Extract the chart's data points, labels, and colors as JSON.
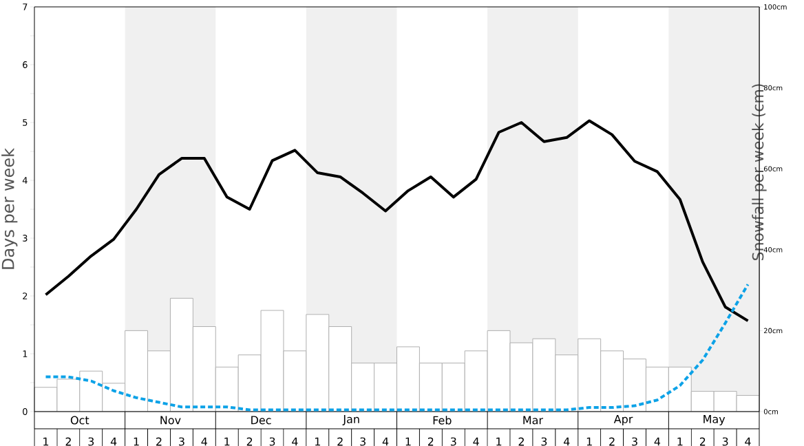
{
  "chart_data": {
    "type": "bar",
    "categories": [
      "1",
      "2",
      "3",
      "4",
      "1",
      "2",
      "3",
      "4",
      "1",
      "2",
      "3",
      "4",
      "1",
      "2",
      "3",
      "4",
      "1",
      "2",
      "3",
      "4",
      "1",
      "2",
      "3",
      "4",
      "1",
      "2",
      "3",
      "4",
      "1",
      "2",
      "3",
      "4"
    ],
    "annotations": [
      "Oct",
      "Nov",
      "Dec",
      "Jan",
      "Feb",
      "Mar",
      "Apr",
      "May"
    ],
    "ylabel": "Days per week",
    "y2label": "Snowfall per week (cm)",
    "ylim": [
      0,
      7
    ],
    "yticks": [
      0,
      {
        "value": 0.5,
        "label": null
      },
      1,
      {
        "value": 1.5,
        "label": null
      },
      2,
      {
        "value": 2.5,
        "label": null
      },
      3,
      {
        "value": 3.5,
        "label": null
      },
      4,
      {
        "value": 4.5,
        "label": null
      },
      5,
      {
        "value": 5.5,
        "label": null
      },
      6,
      {
        "value": 6.5,
        "label": null
      },
      7
    ],
    "y2lim": [
      0,
      100
    ],
    "y2ticks": [
      {
        "value": 0,
        "label": "0cm"
      },
      {
        "value": 20,
        "label": "20cm"
      },
      {
        "value": 40,
        "label": "40cm"
      },
      {
        "value": 60,
        "label": "60cm"
      },
      {
        "value": 80,
        "label": "80cm"
      },
      {
        "value": 100,
        "label": "100cm"
      }
    ],
    "series": [
      {
        "axis": "y2",
        "color": "#ffffff",
        "values": [
          6,
          8,
          10,
          7,
          20,
          15,
          28,
          21,
          11,
          14,
          25,
          15,
          24,
          21,
          12,
          12,
          16,
          12,
          12,
          15,
          20,
          17,
          18,
          14,
          18,
          15,
          13,
          11,
          11,
          5,
          5,
          4
        ]
      },
      {
        "type": "line",
        "color": "#000000",
        "values": [
          2.02,
          2.34,
          2.69,
          2.98,
          3.5,
          4.1,
          4.38,
          4.38,
          3.71,
          3.5,
          4.34,
          4.52,
          4.13,
          4.06,
          3.78,
          3.47,
          3.82,
          4.06,
          3.71,
          4.02,
          4.83,
          5.0,
          4.67,
          4.74,
          5.03,
          4.79,
          4.33,
          4.15,
          3.67,
          2.59,
          1.81,
          1.57
        ]
      },
      {
        "type": "line",
        "color": "#0da2e7",
        "line_style": "dashed",
        "values": [
          0.6,
          0.6,
          0.53,
          0.36,
          0.24,
          0.16,
          0.08,
          0.08,
          0.08,
          0.03,
          0.03,
          0.03,
          0.03,
          0.03,
          0.03,
          0.03,
          0.03,
          0.03,
          0.03,
          0.03,
          0.03,
          0.03,
          0.03,
          0.03,
          0.07,
          0.07,
          0.1,
          0.2,
          0.45,
          0.89,
          1.53,
          2.2
        ]
      }
    ]
  }
}
